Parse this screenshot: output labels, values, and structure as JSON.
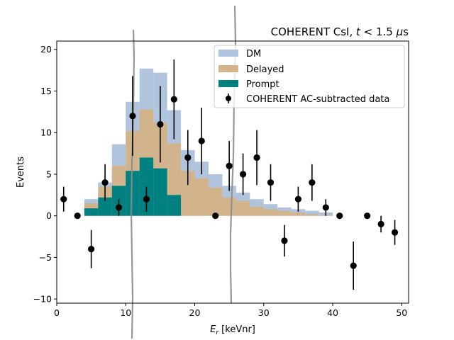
{
  "chart_data": {
    "type": "bar",
    "title": "COHERENT CsI, t < 1.5 μs",
    "xlabel": "E_r [keVnr]",
    "ylabel": "Events",
    "xlim": [
      0,
      51
    ],
    "ylim": [
      -10.5,
      21
    ],
    "xticks": [
      0,
      10,
      20,
      30,
      40,
      50
    ],
    "yticks": [
      -10,
      -5,
      0,
      5,
      10,
      15,
      20
    ],
    "grid": false,
    "legend_position": "top-right",
    "bin_edges": [
      4,
      6,
      8,
      10,
      12,
      14,
      16,
      18,
      20,
      22,
      24,
      26,
      28,
      30,
      32,
      34,
      36,
      38,
      40
    ],
    "series": [
      {
        "name": "DM",
        "kind": "stacked-histogram-top",
        "color": "#b0c4de",
        "values": [
          2.0,
          4.0,
          8.6,
          13.7,
          17.7,
          17.2,
          12.7,
          7.9,
          6.5,
          5.0,
          3.6,
          2.8,
          2.0,
          1.4,
          1.0,
          0.8,
          0.6,
          0.4
        ]
      },
      {
        "name": "Delayed",
        "kind": "stacked-histogram-middle",
        "color": "#d2b48c",
        "values": [
          1.5,
          3.5,
          6.0,
          10.2,
          12.8,
          11.2,
          8.7,
          5.4,
          4.5,
          3.4,
          2.2,
          1.8,
          1.1,
          0.8,
          0.6,
          0.4,
          0.2,
          0.1
        ]
      },
      {
        "name": "Prompt",
        "kind": "stacked-histogram-bottom",
        "color": "#008080",
        "values": [
          0.9,
          2.2,
          3.6,
          5.4,
          7.0,
          5.7,
          2.5,
          0.0,
          0.0,
          0.0,
          0.0,
          0.0,
          0.0,
          0.0,
          0.0,
          0.0,
          0.0,
          0.0
        ]
      },
      {
        "name": "COHERENT AC-subtracted data",
        "kind": "errorbar",
        "color": "#000000",
        "points": [
          {
            "x": 1,
            "y": 2,
            "err": 1.5
          },
          {
            "x": 3,
            "y": 0,
            "err": 0
          },
          {
            "x": 5,
            "y": -4,
            "err": 2.3
          },
          {
            "x": 7,
            "y": 4,
            "err": 2.2
          },
          {
            "x": 9,
            "y": 1,
            "err": 1
          },
          {
            "x": 11,
            "y": 12,
            "err": 4.8
          },
          {
            "x": 13,
            "y": 2,
            "err": 1.5
          },
          {
            "x": 15,
            "y": 11,
            "err": 4.6
          },
          {
            "x": 17,
            "y": 14,
            "err": 4.8
          },
          {
            "x": 19,
            "y": 7,
            "err": 3.3
          },
          {
            "x": 21,
            "y": 9,
            "err": 4
          },
          {
            "x": 23,
            "y": 0,
            "err": 0
          },
          {
            "x": 25,
            "y": 6,
            "err": 3
          },
          {
            "x": 27,
            "y": 5,
            "err": 2.5
          },
          {
            "x": 29,
            "y": 7,
            "err": 3.3
          },
          {
            "x": 31,
            "y": 4,
            "err": 2.2
          },
          {
            "x": 33,
            "y": -3,
            "err": 1.9
          },
          {
            "x": 35,
            "y": 2,
            "err": 1.5
          },
          {
            "x": 37,
            "y": 4,
            "err": 2.2
          },
          {
            "x": 39,
            "y": 1,
            "err": 1
          },
          {
            "x": 41,
            "y": 0,
            "err": 0
          },
          {
            "x": 43,
            "y": -6,
            "err": 2.9
          },
          {
            "x": 45,
            "y": 0,
            "err": 0
          },
          {
            "x": 47,
            "y": -1,
            "err": 1
          },
          {
            "x": 49,
            "y": -2,
            "err": 1.5
          }
        ]
      }
    ],
    "legend_entries": [
      "DM",
      "Delayed",
      "Prompt",
      "COHERENT AC-subtracted data"
    ],
    "overlay_curves_color": "#8c8c8c"
  }
}
